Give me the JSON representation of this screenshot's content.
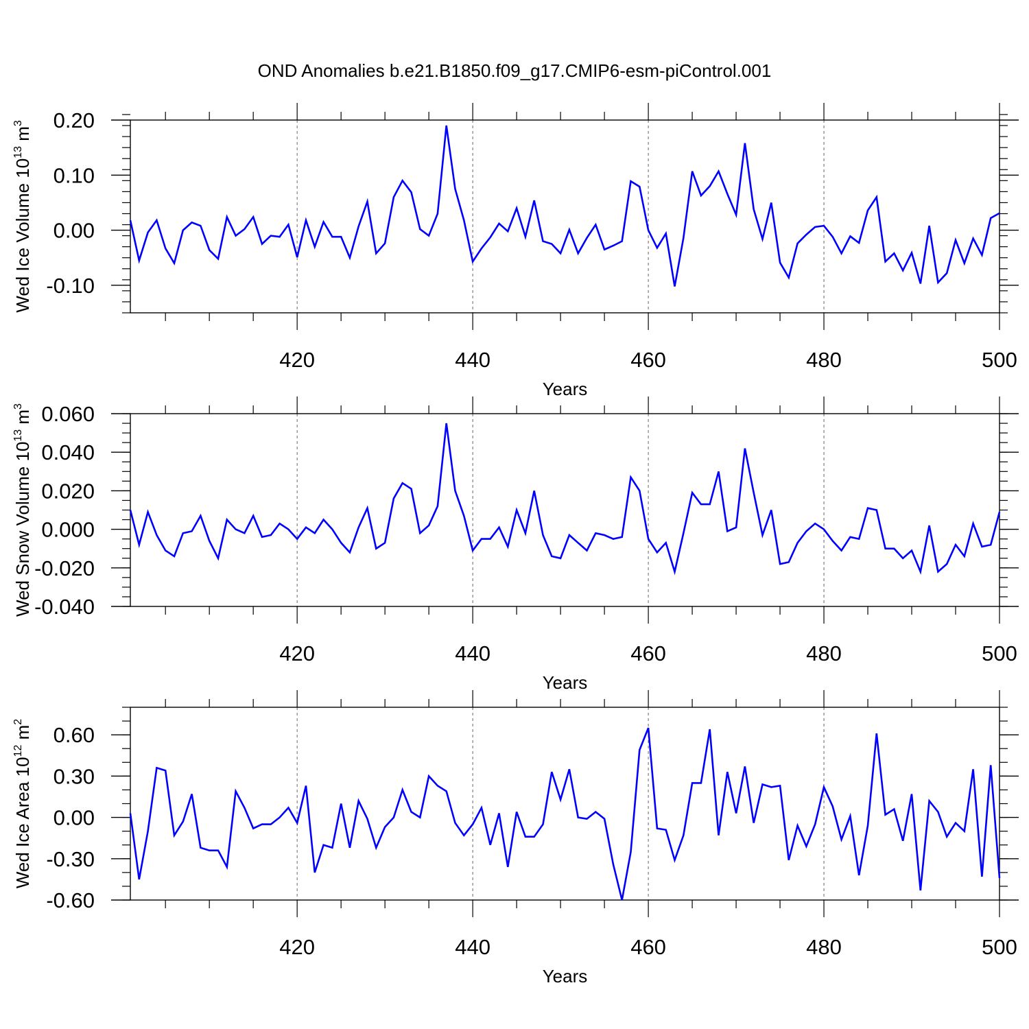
{
  "figure": {
    "title": "OND Anomalies b.e21.B1850.f09_g17.CMIP6-esm-piControl.001"
  },
  "chart_data": [
    {
      "type": "line",
      "title": "OND Anomalies b.e21.B1850.f09_g17.CMIP6-esm-piControl.001",
      "xlabel": "Years",
      "ylabel": {
        "main": "Wed Ice Volume 10",
        "exp": "13",
        "unit": " m",
        "unit_exp": "3"
      },
      "xlim": [
        401,
        500
      ],
      "ylim": [
        -0.15,
        0.2
      ],
      "yticks": [
        0.2,
        0.1,
        0.0,
        -0.1
      ],
      "ytick_labels": [
        "0.20",
        "0.10",
        "0.00",
        "-0.10"
      ],
      "yminor_step": 0.02,
      "xticks": [
        420,
        440,
        460,
        480,
        500
      ],
      "xtick_labels": [
        "420",
        "440",
        "460",
        "480",
        "500"
      ],
      "xminor_step": 5,
      "grid": "vertical dashed at major x ticks",
      "color": "#0000ff",
      "x_start": 401,
      "values": [
        0.018,
        -0.055,
        -0.004,
        0.018,
        -0.033,
        -0.06,
        0.0,
        0.014,
        0.008,
        -0.036,
        -0.052,
        0.024,
        -0.01,
        0.002,
        0.024,
        -0.025,
        -0.01,
        -0.012,
        0.01,
        -0.049,
        0.018,
        -0.03,
        0.015,
        -0.012,
        -0.012,
        -0.05,
        0.007,
        0.052,
        -0.042,
        -0.024,
        0.06,
        0.09,
        0.069,
        0.002,
        -0.01,
        0.03,
        0.19,
        0.075,
        0.018,
        -0.057,
        -0.033,
        -0.013,
        0.012,
        -0.002,
        0.04,
        -0.012,
        0.054,
        -0.02,
        -0.025,
        -0.042,
        0.001,
        -0.042,
        -0.014,
        0.01,
        -0.035,
        -0.028,
        -0.02,
        0.089,
        0.079,
        0.0,
        -0.032,
        -0.006,
        -0.102,
        -0.014,
        0.107,
        0.063,
        0.08,
        0.107,
        0.066,
        0.028,
        0.158,
        0.038,
        -0.016,
        0.05,
        -0.059,
        -0.086,
        -0.024,
        -0.008,
        0.006,
        0.008,
        -0.012,
        -0.042,
        -0.011,
        -0.023,
        0.036,
        0.06,
        -0.057,
        -0.042,
        -0.073,
        -0.041,
        -0.097,
        0.008,
        -0.095,
        -0.078,
        -0.018,
        -0.06,
        -0.015,
        -0.045,
        0.022,
        0.031
      ]
    },
    {
      "type": "line",
      "xlabel": "Years",
      "ylabel": {
        "main": "Wed Snow Volume 10",
        "exp": "13",
        "unit": " m",
        "unit_exp": "3"
      },
      "xlim": [
        401,
        500
      ],
      "ylim": [
        -0.04,
        0.06
      ],
      "yticks": [
        0.06,
        0.04,
        0.02,
        0.0,
        -0.02,
        -0.04
      ],
      "ytick_labels": [
        "0.060",
        "0.040",
        "0.020",
        "0.000",
        "-0.020",
        "-0.040"
      ],
      "yminor_step": 0.005,
      "xticks": [
        420,
        440,
        460,
        480,
        500
      ],
      "xtick_labels": [
        "420",
        "440",
        "460",
        "480",
        "500"
      ],
      "xminor_step": 5,
      "grid": "vertical dashed at major x ticks",
      "color": "#0000ff",
      "x_start": 401,
      "values": [
        0.01,
        -0.008,
        0.009,
        -0.003,
        -0.011,
        -0.014,
        -0.002,
        -0.001,
        0.007,
        -0.006,
        -0.015,
        0.005,
        0.0,
        -0.002,
        0.007,
        -0.004,
        -0.003,
        0.003,
        0.0,
        -0.005,
        0.001,
        -0.002,
        0.005,
        0.0,
        -0.007,
        -0.012,
        0.001,
        0.011,
        -0.01,
        -0.007,
        0.016,
        0.024,
        0.021,
        -0.002,
        0.002,
        0.012,
        0.055,
        0.02,
        0.007,
        -0.011,
        -0.005,
        -0.005,
        0.001,
        -0.009,
        0.01,
        -0.002,
        0.02,
        -0.003,
        -0.014,
        -0.015,
        -0.003,
        -0.007,
        -0.011,
        -0.002,
        -0.003,
        -0.005,
        -0.004,
        0.027,
        0.02,
        -0.005,
        -0.012,
        -0.007,
        -0.022,
        -0.002,
        0.019,
        0.013,
        0.013,
        0.03,
        -0.001,
        0.001,
        0.042,
        0.019,
        -0.003,
        0.01,
        -0.018,
        -0.017,
        -0.007,
        -0.001,
        0.003,
        0.0,
        -0.006,
        -0.011,
        -0.004,
        -0.005,
        0.011,
        0.01,
        -0.01,
        -0.01,
        -0.015,
        -0.011,
        -0.022,
        0.002,
        -0.022,
        -0.018,
        -0.008,
        -0.014,
        0.003,
        -0.009,
        -0.008,
        0.009
      ]
    },
    {
      "type": "line",
      "xlabel": "Years",
      "ylabel": {
        "main": "Wed Ice Area 10",
        "exp": "12",
        "unit": " m",
        "unit_exp": "2"
      },
      "xlim": [
        401,
        500
      ],
      "ylim": [
        -0.6,
        0.8
      ],
      "yticks": [
        0.6,
        0.3,
        0.0,
        -0.3,
        -0.6
      ],
      "ytick_labels": [
        "0.60",
        "0.30",
        "0.00",
        "-0.30",
        "-0.60"
      ],
      "yminor_step": 0.1,
      "xticks": [
        420,
        440,
        460,
        480,
        500
      ],
      "xtick_labels": [
        "420",
        "440",
        "460",
        "480",
        "500"
      ],
      "xminor_step": 5,
      "grid": "vertical dashed at major x ticks",
      "color": "#0000ff",
      "x_start": 401,
      "values": [
        0.03,
        -0.45,
        -0.1,
        0.36,
        0.34,
        -0.13,
        -0.03,
        0.17,
        -0.22,
        -0.24,
        -0.24,
        -0.36,
        0.19,
        0.07,
        -0.08,
        -0.05,
        -0.05,
        0.0,
        0.07,
        -0.04,
        0.23,
        -0.4,
        -0.2,
        -0.22,
        0.1,
        -0.22,
        0.12,
        -0.01,
        -0.22,
        -0.07,
        0.0,
        0.2,
        0.04,
        0.0,
        0.3,
        0.23,
        0.19,
        -0.04,
        -0.13,
        -0.05,
        0.07,
        -0.2,
        0.03,
        -0.36,
        0.04,
        -0.14,
        -0.14,
        -0.05,
        0.33,
        0.13,
        0.35,
        0.0,
        -0.01,
        0.04,
        -0.01,
        -0.34,
        -0.6,
        -0.25,
        0.49,
        0.65,
        -0.08,
        -0.09,
        -0.31,
        -0.13,
        0.25,
        0.25,
        0.64,
        -0.13,
        0.33,
        0.03,
        0.37,
        -0.04,
        0.24,
        0.22,
        0.23,
        -0.31,
        -0.06,
        -0.21,
        -0.05,
        0.22,
        0.08,
        -0.16,
        0.01,
        -0.42,
        -0.06,
        0.61,
        0.02,
        0.06,
        -0.17,
        0.17,
        -0.53,
        0.12,
        0.04,
        -0.14,
        -0.04,
        -0.1,
        0.35,
        -0.43,
        0.38,
        -0.44
      ]
    }
  ]
}
